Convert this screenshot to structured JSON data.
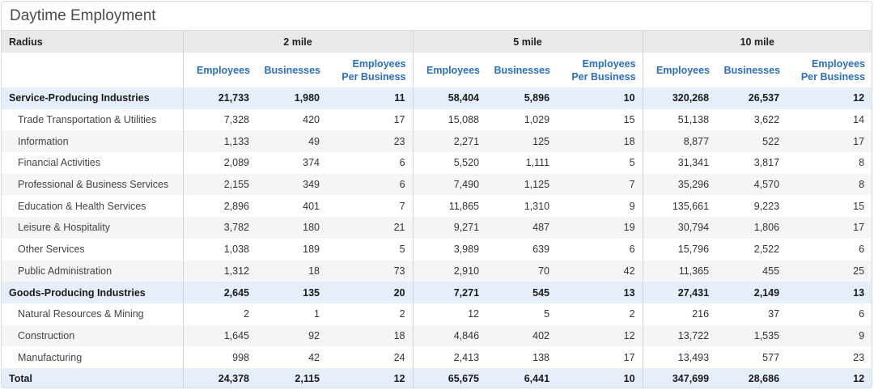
{
  "title": "Daytime Employment",
  "header": {
    "radius_label": "Radius",
    "groups": [
      "2 mile",
      "5 mile",
      "10 mile"
    ],
    "columns": [
      "Employees",
      "Businesses",
      "Employees Per Business"
    ]
  },
  "rows": [
    {
      "label": "Service-Producing Industries",
      "kind": "cat",
      "v": [
        "21,733",
        "1,980",
        "11",
        "58,404",
        "5,896",
        "10",
        "320,268",
        "26,537",
        "12"
      ]
    },
    {
      "label": "Trade Transportation & Utilities",
      "kind": "sub",
      "v": [
        "7,328",
        "420",
        "17",
        "15,088",
        "1,029",
        "15",
        "51,138",
        "3,622",
        "14"
      ]
    },
    {
      "label": "Information",
      "kind": "sub",
      "v": [
        "1,133",
        "49",
        "23",
        "2,271",
        "125",
        "18",
        "8,877",
        "522",
        "17"
      ]
    },
    {
      "label": "Financial Activities",
      "kind": "sub",
      "v": [
        "2,089",
        "374",
        "6",
        "5,520",
        "1,111",
        "5",
        "31,341",
        "3,817",
        "8"
      ]
    },
    {
      "label": "Professional & Business Services",
      "kind": "sub",
      "v": [
        "2,155",
        "349",
        "6",
        "7,490",
        "1,125",
        "7",
        "35,296",
        "4,570",
        "8"
      ]
    },
    {
      "label": "Education & Health Services",
      "kind": "sub",
      "v": [
        "2,896",
        "401",
        "7",
        "11,865",
        "1,310",
        "9",
        "135,661",
        "9,223",
        "15"
      ]
    },
    {
      "label": "Leisure & Hospitality",
      "kind": "sub",
      "v": [
        "3,782",
        "180",
        "21",
        "9,271",
        "487",
        "19",
        "30,794",
        "1,806",
        "17"
      ]
    },
    {
      "label": "Other Services",
      "kind": "sub",
      "v": [
        "1,038",
        "189",
        "5",
        "3,989",
        "639",
        "6",
        "15,796",
        "2,522",
        "6"
      ]
    },
    {
      "label": "Public Administration",
      "kind": "sub",
      "v": [
        "1,312",
        "18",
        "73",
        "2,910",
        "70",
        "42",
        "11,365",
        "455",
        "25"
      ]
    },
    {
      "label": "Goods-Producing Industries",
      "kind": "cat",
      "v": [
        "2,645",
        "135",
        "20",
        "7,271",
        "545",
        "13",
        "27,431",
        "2,149",
        "13"
      ]
    },
    {
      "label": "Natural Resources & Mining",
      "kind": "sub",
      "v": [
        "2",
        "1",
        "2",
        "12",
        "5",
        "2",
        "216",
        "37",
        "6"
      ]
    },
    {
      "label": "Construction",
      "kind": "sub",
      "v": [
        "1,645",
        "92",
        "18",
        "4,846",
        "402",
        "12",
        "13,722",
        "1,535",
        "9"
      ]
    },
    {
      "label": "Manufacturing",
      "kind": "sub",
      "v": [
        "998",
        "42",
        "24",
        "2,413",
        "138",
        "17",
        "13,493",
        "577",
        "23"
      ]
    },
    {
      "label": "Total",
      "kind": "total",
      "v": [
        "24,378",
        "2,115",
        "12",
        "65,675",
        "6,441",
        "10",
        "347,699",
        "28,686",
        "12"
      ]
    }
  ]
}
